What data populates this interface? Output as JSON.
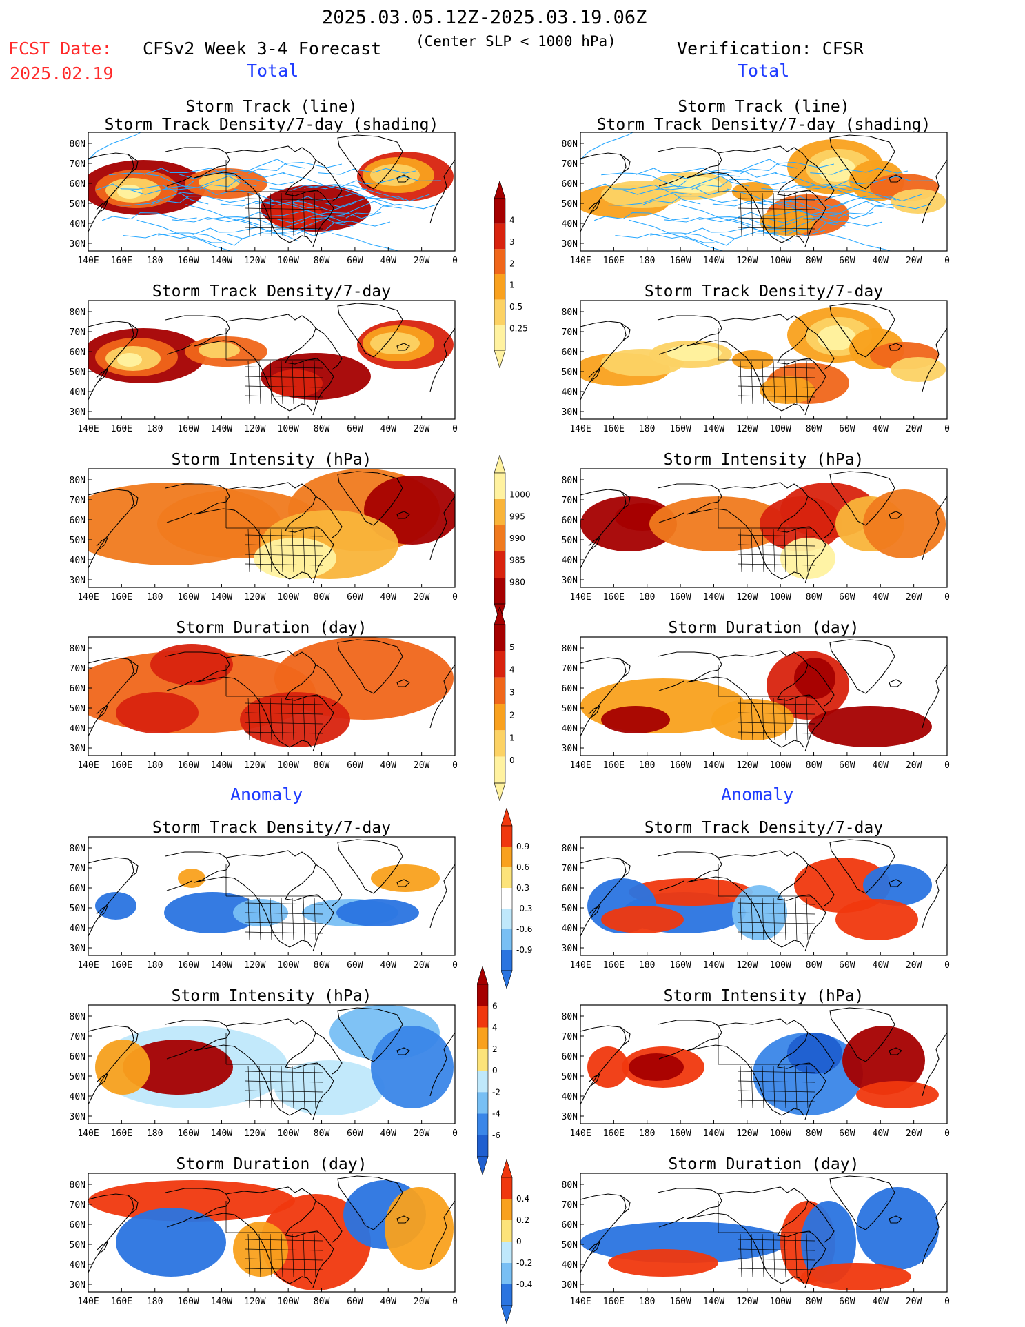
{
  "header": {
    "date_range": "2025.03.05.12Z-2025.03.19.06Z",
    "fcst_date_label": "FCST Date:",
    "fcst_date": "2025.02.19",
    "left_title": "CFSv2 Week 3-4 Forecast",
    "center_note": "(Center SLP < 1000 hPa)",
    "right_title": "Verification: CFSR"
  },
  "sections": {
    "total_left": "Total",
    "total_right": "Total",
    "anomaly_left": "Anomaly",
    "anomaly_right": "Anomaly"
  },
  "panel_titles": {
    "track_line": "Storm Track (line)",
    "track_shading": "Storm Track Density/7-day (shading)",
    "density": "Storm Track Density/7-day",
    "intensity": "Storm Intensity (hPa)",
    "duration": "Storm Duration (day)"
  },
  "axes": {
    "lon_labels": [
      "140E",
      "160E",
      "180",
      "160W",
      "140W",
      "120W",
      "100W",
      "80W",
      "60W",
      "40W",
      "20W",
      "0"
    ],
    "lat_labels": [
      "80N",
      "70N",
      "60N",
      "50N",
      "40N",
      "30N"
    ]
  },
  "colorbars": {
    "density": {
      "labels": [
        "4",
        "3",
        "2",
        "1",
        "0.5",
        "0.25"
      ],
      "colors": [
        "#a50000",
        "#d8230e",
        "#f0661a",
        "#f9a11e",
        "#fcd264",
        "#fff2a0"
      ]
    },
    "intensity": {
      "labels": [
        "1000",
        "995",
        "990",
        "985",
        "980"
      ],
      "colors": [
        "#fff2a0",
        "#f9b43a",
        "#f07a1e",
        "#d8230e",
        "#a50000"
      ]
    },
    "duration": {
      "labels": [
        "5",
        "4",
        "3",
        "2",
        "1",
        "0"
      ],
      "colors": [
        "#a50000",
        "#d8230e",
        "#f0661a",
        "#f9a11e",
        "#fcd264",
        "#fff2a0"
      ]
    },
    "density_anom": {
      "labels": [
        "0.9",
        "0.6",
        "0.3",
        "-0.3",
        "-0.6",
        "-0.9"
      ],
      "colors": [
        "#f0380e",
        "#f9a11e",
        "#fce37a",
        "#ffffff",
        "#bfe8fb",
        "#78bff4",
        "#2a74e0"
      ]
    },
    "intensity_anom": {
      "labels": [
        "6",
        "4",
        "2",
        "0",
        "-2",
        "-4",
        "-6"
      ],
      "colors": [
        "#a50000",
        "#f0380e",
        "#f9a11e",
        "#fce37a",
        "#bfe8fb",
        "#78bff4",
        "#3a86e8",
        "#1f5fd0"
      ]
    },
    "duration_anom": {
      "labels": [
        "0.4",
        "0.2",
        "0",
        "-0.2",
        "-0.4"
      ],
      "colors": [
        "#f0380e",
        "#f9a11e",
        "#fce37a",
        "#bfe8fb",
        "#78bff4",
        "#2a74e0"
      ]
    }
  },
  "colors": {
    "land_outline": "#000000",
    "track_line": "#29a8ff",
    "header_red": "#ff2a2a",
    "section_blue": "#1f3cff"
  }
}
